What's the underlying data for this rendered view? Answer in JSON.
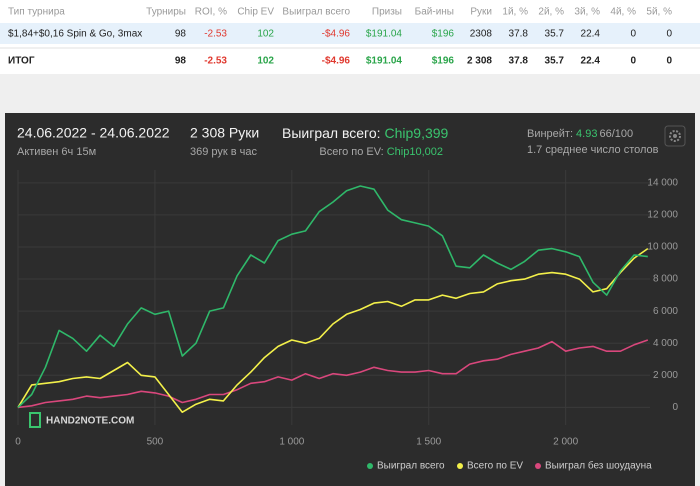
{
  "table": {
    "columns": [
      "Тип турнира",
      "Турниры",
      "ROI, %",
      "Chip EV",
      "Выиграл всего",
      "Призы",
      "Бай-ины",
      "Руки",
      "1й, %",
      "2й, %",
      "3й, %",
      "4й, %",
      "5й, %"
    ],
    "rows": [
      [
        "$1,84+$0,16 Spin & Go, 3max",
        "98",
        "-2.53",
        "102",
        "-$4.96",
        "$191.04",
        "$196",
        "2308",
        "37.8",
        "35.7",
        "22.4",
        "0",
        "0"
      ]
    ],
    "total": [
      "ИТОГ",
      "98",
      "-2.53",
      "102",
      "-$4.96",
      "$191.04",
      "$196",
      "2 308",
      "37.8",
      "35.7",
      "22.4",
      "0",
      "0"
    ]
  },
  "summary": {
    "date_range": "24.06.2022 - 24.06.2022",
    "active": "Активен 6ч 15м",
    "hands": "2 308 Руки",
    "hands_per_hour": "369 рук в час",
    "won_label": "Выиграл всего:",
    "won_value": "Chip9,399",
    "ev_label": "Всего по EV:",
    "ev_value": "Chip10,002",
    "winrate_label": "Винрейт:",
    "winrate_value": "4.93",
    "winrate_unit": "66/100",
    "tables": "1.7 среднее число столов"
  },
  "chart_data": {
    "type": "line",
    "watermark": "HAND2NOTE.COM",
    "x": [
      0,
      50,
      100,
      150,
      200,
      250,
      300,
      350,
      400,
      450,
      500,
      550,
      600,
      650,
      700,
      750,
      800,
      850,
      900,
      950,
      1000,
      1050,
      1100,
      1150,
      1200,
      1250,
      1300,
      1350,
      1400,
      1450,
      1500,
      1550,
      1600,
      1650,
      1700,
      1750,
      1800,
      1850,
      1900,
      1950,
      2000,
      2050,
      2100,
      2150,
      2200,
      2250,
      2300
    ],
    "series": [
      {
        "name": "Выиграл всего",
        "color": "#2fb86a",
        "values": [
          0,
          800,
          2500,
          4800,
          4300,
          3500,
          4500,
          3800,
          5200,
          6200,
          5800,
          6000,
          3200,
          4000,
          6000,
          6200,
          8200,
          9500,
          9000,
          10400,
          10800,
          11000,
          12200,
          12800,
          13500,
          13800,
          13600,
          12300,
          11700,
          11500,
          11300,
          10700,
          8800,
          8700,
          9500,
          9000,
          8600,
          9100,
          9800,
          9900,
          9700,
          9400,
          7800,
          7000,
          8500,
          9500,
          9400
        ]
      },
      {
        "name": "Всего по EV",
        "color": "#f3f04a",
        "values": [
          0,
          1400,
          1500,
          1600,
          1800,
          1900,
          1800,
          2300,
          2800,
          2000,
          1900,
          800,
          -300,
          200,
          500,
          400,
          1400,
          2200,
          3100,
          3800,
          4200,
          4000,
          4300,
          5200,
          5800,
          6100,
          6500,
          6600,
          6300,
          6700,
          6700,
          7000,
          6800,
          7100,
          7200,
          7700,
          7900,
          8000,
          8300,
          8400,
          8300,
          8000,
          7200,
          7400,
          8400,
          9300,
          9900
        ]
      },
      {
        "name": "Выиграл без шоудауна",
        "color": "#d9477c",
        "values": [
          0,
          100,
          300,
          400,
          500,
          700,
          600,
          700,
          800,
          1000,
          900,
          700,
          300,
          500,
          800,
          800,
          1100,
          1500,
          1600,
          1900,
          1700,
          2100,
          1800,
          2100,
          2000,
          2200,
          2500,
          2300,
          2200,
          2200,
          2300,
          2100,
          2100,
          2700,
          2900,
          3000,
          3300,
          3500,
          3700,
          4100,
          3500,
          3700,
          3800,
          3500,
          3500,
          3900,
          4200
        ]
      }
    ],
    "xlim": [
      0,
      2308
    ],
    "ylim": [
      -1100,
      14800
    ],
    "xticks": [
      0,
      500,
      {
        "value": 1000,
        "label": "1 000"
      },
      {
        "value": 1500,
        "label": "1 500"
      },
      {
        "value": 2000,
        "label": "2 000"
      }
    ],
    "yticks": [
      0,
      {
        "value": 2000,
        "label": "2 000"
      },
      {
        "value": 4000,
        "label": "4 000"
      },
      {
        "value": 6000,
        "label": "6 000"
      },
      {
        "value": 8000,
        "label": "8 000"
      },
      {
        "value": 10000,
        "label": "10 000"
      },
      {
        "value": 12000,
        "label": "12 000"
      },
      {
        "value": 14000,
        "label": "14 000"
      }
    ],
    "grid": true
  }
}
